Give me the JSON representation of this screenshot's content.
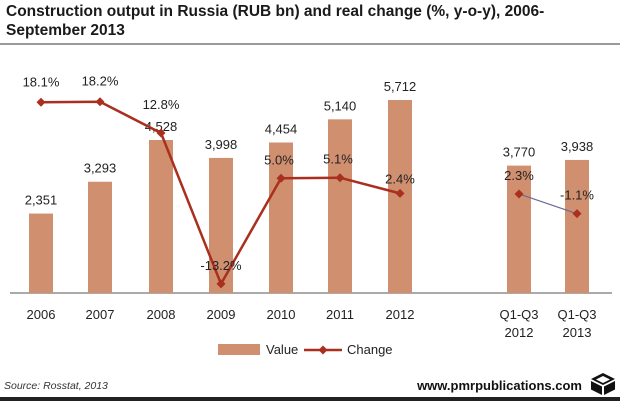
{
  "header": {
    "title": "Construction output in Russia (RUB bn) and real change (%, y-o-y), 2006-September 2013"
  },
  "chart_data": {
    "type": "bar",
    "categories": [
      "2006",
      "2007",
      "2008",
      "2009",
      "2010",
      "2011",
      "2012",
      "Q1-Q3 2012",
      "Q1-Q3 2013"
    ],
    "category_lines": [
      [
        "2006"
      ],
      [
        "2007"
      ],
      [
        "2008"
      ],
      [
        "2009"
      ],
      [
        "2010"
      ],
      [
        "2011"
      ],
      [
        "2012"
      ],
      [
        "Q1-Q3",
        "2012"
      ],
      [
        "Q1-Q3",
        "2013"
      ]
    ],
    "series": [
      {
        "name": "Value",
        "type": "bar",
        "values": [
          2351,
          3293,
          4528,
          3998,
          4454,
          5140,
          5712,
          3770,
          3938
        ],
        "labels": [
          "2,351",
          "3,293",
          "4,528",
          "3,998",
          "4,454",
          "5,140",
          "5,712",
          "3,770",
          "3,938"
        ],
        "color": "#d08f6f"
      },
      {
        "name": "Change",
        "type": "line",
        "values": [
          18.1,
          18.2,
          12.8,
          -13.2,
          5.0,
          5.1,
          2.4,
          2.3,
          -1.1
        ],
        "labels": [
          "18.1%",
          "18.2%",
          "12.8%",
          "-13.2%",
          "5.0%",
          "5.1%",
          "2.4%",
          "2.3%",
          "-1.1%"
        ],
        "color": "#a92f1e",
        "period_break_after": "2012"
      }
    ],
    "period_connector_color": "#6a6a96",
    "legend": {
      "placement": "bottom",
      "items": [
        "Value",
        "Change"
      ]
    },
    "value_axis_range": [
      0,
      6200
    ],
    "change_axis_range": [
      -16,
      23
    ],
    "grid": false
  },
  "footer": {
    "source": "Source: Rosstat, 2013",
    "brand": "www.pmrpublications.com"
  }
}
